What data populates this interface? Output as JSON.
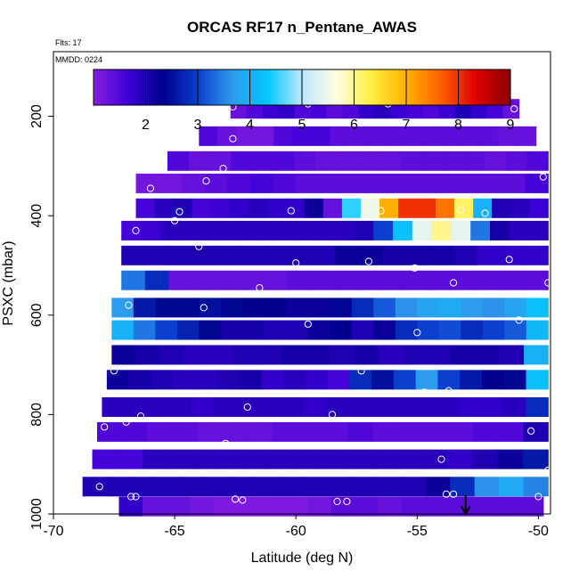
{
  "chart_data": {
    "type": "heatmap",
    "title": "ORCAS RF17 n_Pentane_AWAS",
    "subtitle_flts": "Flts: 17",
    "subtitle_mmdd": "MMDD: 0224",
    "xlabel": "Latitude (deg N)",
    "ylabel": "PSXC (mbar)",
    "xlim": [
      -70,
      -49.5
    ],
    "ylim": [
      1000,
      70
    ],
    "x_ticks": [
      -70,
      -65,
      -60,
      -55,
      -50
    ],
    "y_ticks": [
      200,
      400,
      600,
      800,
      1000
    ],
    "colorbar": {
      "ticks": [
        2,
        3,
        4,
        5,
        6,
        7,
        8,
        9
      ],
      "range": [
        1,
        9
      ],
      "colors": [
        "#8a1fe0",
        "#3d00d8",
        "#00008c",
        "#0a3fcf",
        "#2f9aee",
        "#00c8ff",
        "#bde6ff",
        "#fffde0",
        "#ffee40",
        "#ffb000",
        "#ff6000",
        "#e00000",
        "#8c0000"
      ]
    },
    "rows": [
      {
        "p": 185,
        "lat_min": -62.7,
        "lat_max": -50.8,
        "values": [
          1.3,
          1.5,
          1.7,
          1.8,
          1.5,
          1.6,
          1.4,
          1.5,
          1.8,
          1.9,
          1.7,
          1.6,
          1.5,
          1.7,
          2.0,
          1.8,
          1.6,
          1.3
        ]
      },
      {
        "p": 240,
        "lat_min": -64.0,
        "lat_max": -50.1,
        "values": [
          1.5,
          1.3,
          1.2,
          1.2,
          1.5,
          1.6,
          1.6,
          1.4,
          1.4,
          1.4,
          1.4,
          1.4,
          1.4,
          1.4,
          1.4,
          1.4,
          1.3,
          1.3
        ]
      },
      {
        "p": 290,
        "lat_min": -65.3,
        "lat_max": -49.6,
        "values": [
          1.5,
          1.3,
          1.3,
          1.5,
          1.5,
          1.5,
          1.4,
          1.3,
          1.3,
          1.3,
          1.3,
          1.4,
          1.4,
          1.4,
          1.4,
          1.3,
          1.4,
          1.5
        ]
      },
      {
        "p": 335,
        "lat_min": -66.6,
        "lat_max": -49.6,
        "values": [
          1.2,
          1.2,
          1.3,
          1.4,
          1.5,
          1.6,
          1.5,
          1.4,
          1.4,
          1.4,
          1.4,
          1.4,
          1.4,
          1.4,
          1.4,
          1.4,
          1.4,
          1.6
        ]
      },
      {
        "p": 385,
        "lat_min": -66.6,
        "lat_max": -49.6,
        "values": [
          1.6,
          1.9,
          2.0,
          1.6,
          1.7,
          1.8,
          1.9,
          1.8,
          1.8,
          2.2,
          1.3,
          4.5,
          5.5,
          7.0,
          8.0,
          8.0,
          7.5,
          6.2,
          4.0,
          2.0,
          1.9,
          1.7
        ]
      },
      {
        "p": 430,
        "lat_min": -67.2,
        "lat_max": -49.6,
        "values": [
          1.6,
          1.7,
          1.9,
          1.9,
          1.9,
          1.9,
          1.9,
          1.9,
          1.9,
          1.9,
          1.9,
          1.9,
          2.0,
          3.0,
          4.2,
          5.4,
          6.0,
          5.4,
          3.4,
          2.1,
          1.9,
          1.9
        ]
      },
      {
        "p": 480,
        "lat_min": -67.2,
        "lat_max": -49.6,
        "values": [
          2.0,
          2.0,
          2.0,
          2.0,
          2.0,
          2.0,
          2.0,
          2.0,
          2.0,
          2.2,
          2.2,
          2.1,
          2.1,
          2.1,
          2.0,
          1.8,
          1.8,
          1.8
        ]
      },
      {
        "p": 530,
        "lat_min": -67.2,
        "lat_max": -49.6,
        "values": [
          3.4,
          2.8,
          1.3,
          1.3,
          1.3,
          1.3,
          1.3,
          1.4,
          1.4,
          1.4,
          1.4,
          1.4,
          1.4,
          1.4,
          1.4,
          1.4,
          1.4,
          1.4
        ]
      },
      {
        "p": 585,
        "lat_min": -67.6,
        "lat_max": -49.6,
        "values": [
          3.7,
          2.6,
          2.4,
          2.4,
          2.5,
          2.4,
          2.3,
          2.3,
          2.2,
          2.2,
          2.4,
          2.8,
          3.2,
          3.6,
          3.8,
          3.9,
          3.7,
          3.6,
          3.8,
          4.2
        ]
      },
      {
        "p": 630,
        "lat_min": -67.6,
        "lat_max": -49.6,
        "values": [
          4.0,
          3.4,
          3.0,
          2.7,
          2.4,
          2.1,
          2.1,
          2.0,
          2.0,
          2.2,
          2.3,
          2.0,
          2.2,
          2.8,
          3.0,
          3.1,
          2.8,
          3.0,
          3.2,
          4.1
        ]
      },
      {
        "p": 680,
        "lat_min": -67.6,
        "lat_max": -49.6,
        "values": [
          2.2,
          2.1,
          2.0,
          1.9,
          1.9,
          2.0,
          2.0,
          2.1,
          2.1,
          2.0,
          2.1,
          1.9,
          2.0,
          2.0,
          2.1,
          2.1,
          2.0,
          4.0
        ]
      },
      {
        "p": 730,
        "lat_min": -67.8,
        "lat_max": -49.6,
        "values": [
          2.2,
          2.1,
          2.0,
          1.9,
          1.9,
          2.0,
          2.1,
          1.8,
          1.9,
          1.8,
          1.6,
          2.8,
          2.5,
          3.0,
          3.7,
          3.0,
          2.6,
          2.3,
          2.4,
          4.2
        ]
      },
      {
        "p": 785,
        "lat_min": -68.0,
        "lat_max": -49.6,
        "values": [
          1.9,
          1.9,
          1.9,
          1.9,
          1.8,
          1.9,
          1.9,
          1.9,
          1.9,
          1.8,
          1.9,
          1.9,
          1.9,
          1.9,
          1.9,
          1.9,
          1.8,
          1.8,
          1.9,
          2.8
        ]
      },
      {
        "p": 835,
        "lat_min": -68.2,
        "lat_max": -49.6,
        "values": [
          1.5,
          1.5,
          1.4,
          1.4,
          1.3,
          1.3,
          1.3,
          1.4,
          1.4,
          1.4,
          1.5,
          1.4,
          1.4,
          1.4,
          1.4,
          1.5,
          1.5,
          2.0
        ]
      },
      {
        "p": 890,
        "lat_min": -68.4,
        "lat_max": -49.6,
        "values": [
          1.6,
          1.6,
          1.9,
          1.9,
          1.9,
          1.9,
          1.9,
          1.9,
          1.9,
          1.9,
          1.9,
          1.9,
          1.9,
          1.9,
          1.8,
          2.0,
          2.2,
          2.6
        ]
      },
      {
        "p": 945,
        "lat_min": -68.8,
        "lat_max": -49.6,
        "values": [
          2.0,
          2.0,
          2.0,
          2.0,
          2.0,
          2.0,
          2.0,
          2.0,
          2.0,
          2.0,
          2.0,
          2.0,
          2.0,
          2.0,
          2.2,
          2.8,
          3.6,
          3.9,
          3.5
        ]
      },
      {
        "p": 985,
        "lat_min": -67.3,
        "lat_max": -49.8,
        "values": [
          1.8,
          1.3,
          1.3,
          1.2,
          1.1,
          1.1,
          1.1,
          1.1,
          1.2,
          1.4,
          1.4,
          1.3,
          1.4,
          1.4,
          1.4,
          1.4,
          1.4,
          1.4
        ]
      }
    ],
    "samples": [
      [
        -62.6,
        181
      ],
      [
        -59.5,
        175
      ],
      [
        -56.2,
        175
      ],
      [
        -51.0,
        185
      ],
      [
        -62.6,
        245
      ],
      [
        -63.7,
        330
      ],
      [
        -63.0,
        305
      ],
      [
        -66.0,
        345
      ],
      [
        -49.8,
        322
      ],
      [
        -64.8,
        392
      ],
      [
        -60.2,
        390
      ],
      [
        -56.5,
        390
      ],
      [
        -53.2,
        388
      ],
      [
        -52.2,
        395
      ],
      [
        -65.0,
        410
      ],
      [
        -66.6,
        430
      ],
      [
        -64.0,
        462
      ],
      [
        -60.0,
        495
      ],
      [
        -57.0,
        492
      ],
      [
        -55.1,
        505
      ],
      [
        -51.2,
        488
      ],
      [
        -61.5,
        545
      ],
      [
        -53.5,
        535
      ],
      [
        -49.6,
        535
      ],
      [
        -66.9,
        580
      ],
      [
        -63.8,
        585
      ],
      [
        -59.5,
        618
      ],
      [
        -55.0,
        635
      ],
      [
        -50.8,
        610
      ],
      [
        -67.5,
        712
      ],
      [
        -57.3,
        712
      ],
      [
        -54.7,
        755
      ],
      [
        -53.7,
        752
      ],
      [
        -62.0,
        785
      ],
      [
        -58.5,
        800
      ],
      [
        -67.0,
        815
      ],
      [
        -66.4,
        803
      ],
      [
        -67.9,
        825
      ],
      [
        -50.3,
        833
      ],
      [
        -62.9,
        858
      ],
      [
        -54.0,
        890
      ],
      [
        -49.6,
        912
      ],
      [
        -68.1,
        945
      ],
      [
        -66.8,
        965
      ],
      [
        -66.6,
        965
      ],
      [
        -62.5,
        970
      ],
      [
        -62.2,
        972
      ],
      [
        -58.3,
        975
      ],
      [
        -57.9,
        975
      ],
      [
        -53.8,
        960
      ],
      [
        -53.5,
        960
      ],
      [
        -50.0,
        965
      ]
    ],
    "arrow_lat": -53
  }
}
